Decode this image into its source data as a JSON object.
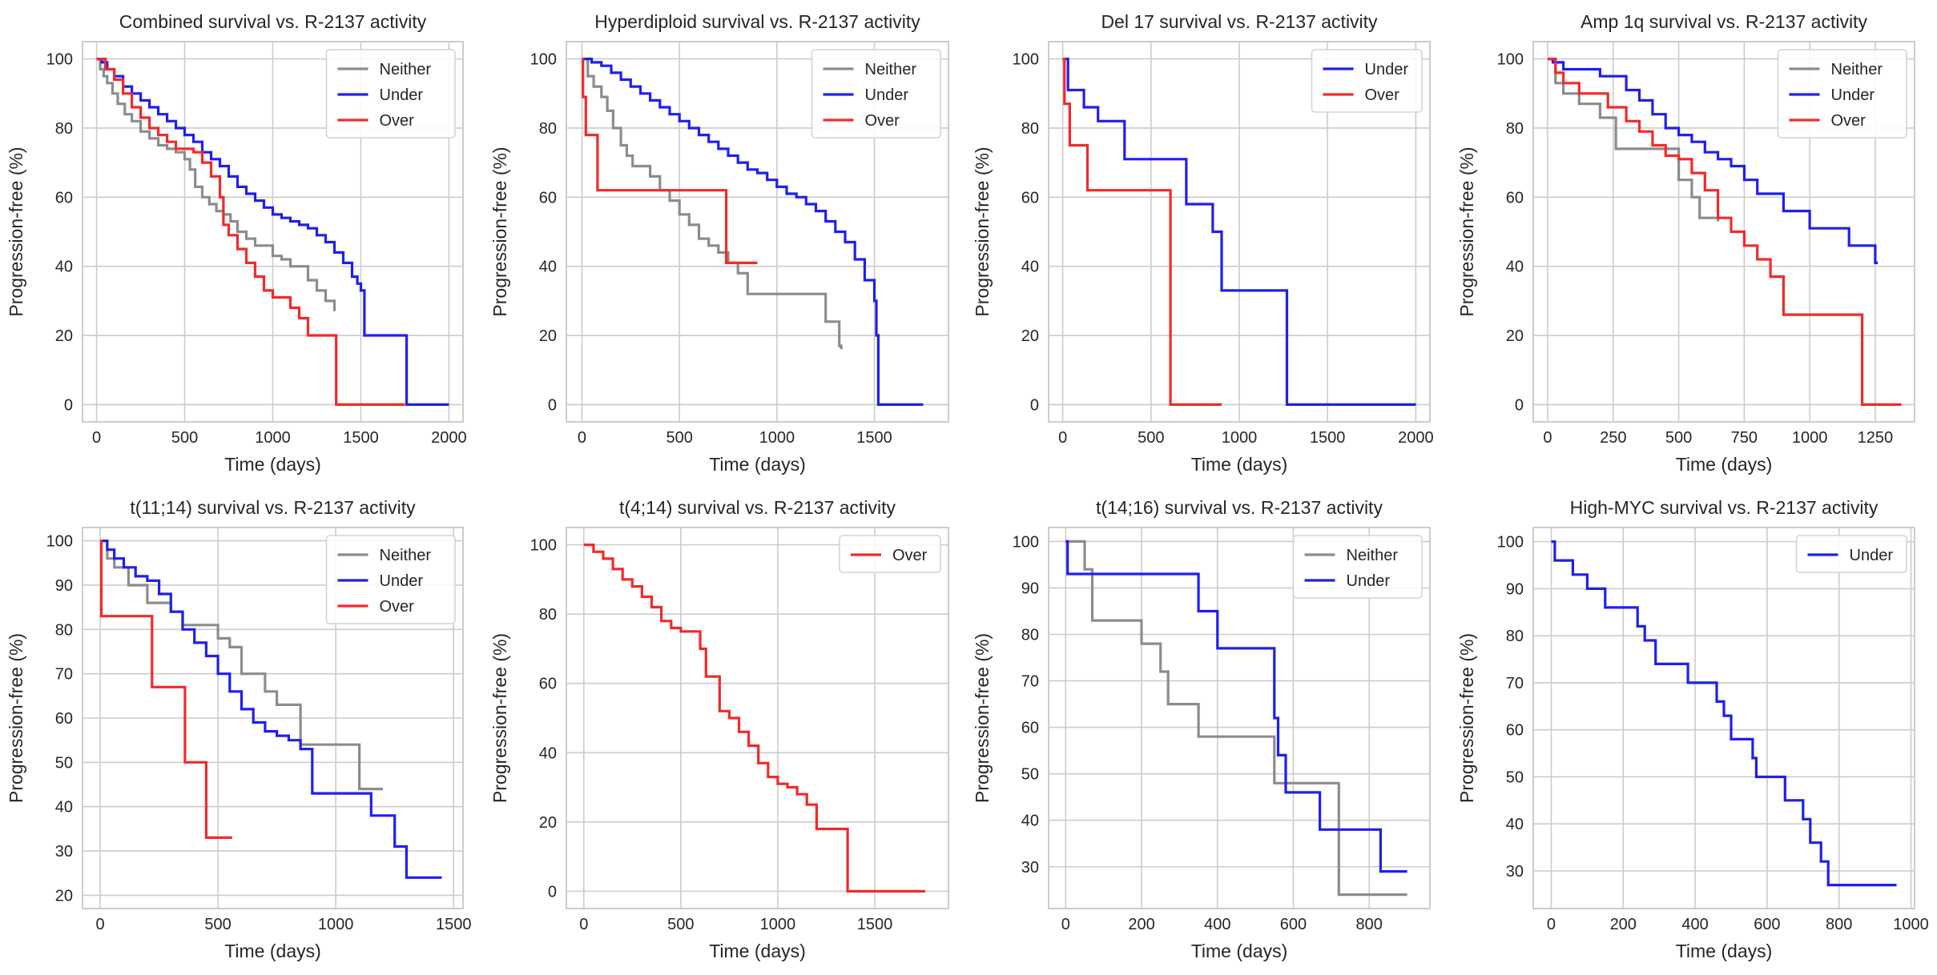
{
  "colors": {
    "Neither": "#8c8c8c",
    "Under": "#1f1fef",
    "Over": "#f22a2a"
  },
  "chart_data": [
    {
      "type": "line",
      "title": "Combined survival vs. R-2137 activity",
      "xlabel": "Time (days)",
      "ylabel": "Progression-free (%)",
      "xlim": [
        -80,
        2080
      ],
      "ylim": [
        -5,
        105
      ],
      "xticks": [
        0,
        500,
        1000,
        1500,
        2000
      ],
      "yticks": [
        0,
        20,
        40,
        60,
        80,
        100
      ],
      "legend": "top-right",
      "series": [
        {
          "name": "Neither",
          "x": [
            0,
            20,
            40,
            60,
            90,
            120,
            160,
            200,
            250,
            300,
            350,
            400,
            450,
            500,
            530,
            560,
            600,
            640,
            680,
            720,
            760,
            800,
            850,
            900,
            1000,
            1050,
            1100,
            1200,
            1250,
            1300,
            1350
          ],
          "y": [
            100,
            97,
            95,
            93,
            90,
            87,
            84,
            82,
            79,
            77,
            75,
            74,
            73,
            71,
            68,
            63,
            60,
            58,
            56,
            55,
            53,
            50,
            48,
            46,
            43,
            42,
            40,
            36,
            33,
            30,
            27
          ]
        },
        {
          "name": "Under",
          "x": [
            0,
            30,
            60,
            100,
            150,
            200,
            250,
            300,
            350,
            400,
            450,
            500,
            550,
            600,
            650,
            700,
            750,
            800,
            850,
            900,
            950,
            1000,
            1050,
            1100,
            1150,
            1200,
            1250,
            1300,
            1350,
            1400,
            1450,
            1480,
            1500,
            1520,
            1750,
            1760,
            2000
          ],
          "y": [
            100,
            99,
            97,
            95,
            92,
            90,
            88,
            86,
            84,
            82,
            80,
            78,
            76,
            73,
            71,
            69,
            66,
            63,
            61,
            59,
            57,
            55,
            54,
            53,
            52,
            51,
            49,
            47,
            44,
            41,
            37,
            35,
            33,
            20,
            20,
            0,
            0
          ]
        },
        {
          "name": "Over",
          "x": [
            0,
            50,
            100,
            150,
            200,
            250,
            300,
            350,
            400,
            450,
            500,
            550,
            600,
            650,
            700,
            720,
            750,
            800,
            850,
            900,
            950,
            1000,
            1100,
            1150,
            1200,
            1350,
            1360,
            1750
          ],
          "y": [
            100,
            97,
            94,
            90,
            86,
            83,
            80,
            78,
            76,
            74,
            74,
            73,
            70,
            66,
            60,
            52,
            49,
            45,
            41,
            37,
            33,
            31,
            28,
            25,
            20,
            20,
            0,
            0
          ]
        }
      ]
    },
    {
      "type": "line",
      "title": "Hyperdiploid survival vs. R-2137 activity",
      "xlabel": "Time (days)",
      "ylabel": "Progression-free (%)",
      "xlim": [
        -80,
        1880
      ],
      "ylim": [
        -5,
        105
      ],
      "xticks": [
        0,
        500,
        1000,
        1500
      ],
      "yticks": [
        0,
        20,
        40,
        60,
        80,
        100
      ],
      "legend": "top-right",
      "series": [
        {
          "name": "Neither",
          "x": [
            0,
            30,
            60,
            100,
            130,
            160,
            200,
            230,
            260,
            300,
            350,
            400,
            450,
            500,
            550,
            600,
            650,
            700,
            750,
            800,
            850,
            1250,
            1320,
            1330
          ],
          "y": [
            100,
            95,
            92,
            89,
            85,
            80,
            75,
            72,
            69,
            69,
            66,
            62,
            59,
            55,
            52,
            48,
            46,
            44,
            41,
            38,
            32,
            24,
            17,
            16
          ]
        },
        {
          "name": "Under",
          "x": [
            0,
            50,
            100,
            150,
            200,
            250,
            300,
            350,
            400,
            450,
            500,
            550,
            600,
            650,
            700,
            750,
            800,
            850,
            900,
            950,
            1000,
            1050,
            1100,
            1150,
            1200,
            1250,
            1300,
            1350,
            1400,
            1450,
            1500,
            1510,
            1520,
            1750
          ],
          "y": [
            100,
            99,
            98,
            96,
            94,
            92,
            90,
            88,
            86,
            84,
            82,
            80,
            78,
            76,
            74,
            72,
            70,
            68,
            67,
            65,
            63,
            61,
            60,
            58,
            56,
            53,
            50,
            47,
            42,
            36,
            30,
            20,
            0,
            0
          ]
        },
        {
          "name": "Over",
          "x": [
            0,
            5,
            20,
            80,
            720,
            740,
            900
          ],
          "y": [
            100,
            89,
            78,
            62,
            62,
            41,
            41
          ]
        }
      ]
    },
    {
      "type": "line",
      "title": "Del 17 survival vs. R-2137 activity",
      "xlabel": "Time (days)",
      "ylabel": "Progression-free (%)",
      "xlim": [
        -80,
        2080
      ],
      "ylim": [
        -5,
        105
      ],
      "xticks": [
        0,
        500,
        1000,
        1500,
        2000
      ],
      "yticks": [
        0,
        20,
        40,
        60,
        80,
        100
      ],
      "legend": "top-right",
      "series": [
        {
          "name": "Under",
          "x": [
            0,
            30,
            120,
            200,
            350,
            680,
            700,
            850,
            900,
            1250,
            1270,
            2000
          ],
          "y": [
            100,
            91,
            86,
            82,
            71,
            71,
            58,
            50,
            33,
            33,
            0,
            0
          ]
        },
        {
          "name": "Over",
          "x": [
            0,
            10,
            40,
            140,
            590,
            610,
            900
          ],
          "y": [
            100,
            87,
            75,
            62,
            62,
            0,
            0
          ]
        }
      ]
    },
    {
      "type": "line",
      "title": "Amp 1q survival vs. R-2137 activity",
      "xlabel": "Time (days)",
      "ylabel": "Progression-free (%)",
      "xlim": [
        -55,
        1400
      ],
      "ylim": [
        -5,
        105
      ],
      "xticks": [
        0,
        250,
        500,
        750,
        1000,
        1250
      ],
      "yticks": [
        0,
        20,
        40,
        60,
        80,
        100
      ],
      "legend": "top-right",
      "series": [
        {
          "name": "Neither",
          "x": [
            0,
            30,
            60,
            120,
            200,
            260,
            400,
            500,
            550,
            580,
            620,
            650
          ],
          "y": [
            100,
            93,
            90,
            87,
            83,
            74,
            74,
            65,
            60,
            54,
            54,
            53
          ]
        },
        {
          "name": "Under",
          "x": [
            0,
            20,
            60,
            200,
            300,
            350,
            400,
            450,
            500,
            550,
            600,
            650,
            700,
            750,
            800,
            900,
            1000,
            1150,
            1250,
            1260
          ],
          "y": [
            100,
            99,
            97,
            95,
            91,
            88,
            84,
            80,
            78,
            76,
            73,
            71,
            69,
            65,
            61,
            56,
            51,
            46,
            41,
            41
          ]
        },
        {
          "name": "Over",
          "x": [
            0,
            30,
            60,
            120,
            230,
            300,
            350,
            400,
            450,
            500,
            550,
            600,
            650,
            700,
            750,
            800,
            850,
            900,
            1180,
            1200,
            1350
          ],
          "y": [
            100,
            96,
            93,
            90,
            86,
            82,
            79,
            75,
            72,
            71,
            67,
            62,
            54,
            50,
            46,
            42,
            37,
            26,
            26,
            0,
            0
          ]
        }
      ]
    },
    {
      "type": "line",
      "title": "t(11;14) survival vs. R-2137 activity",
      "xlabel": "Time (days)",
      "ylabel": "Progression-free (%)",
      "xlim": [
        -75,
        1540
      ],
      "ylim": [
        17,
        103
      ],
      "xticks": [
        0,
        500,
        1000,
        1500
      ],
      "yticks": [
        20,
        30,
        40,
        50,
        60,
        70,
        80,
        90,
        100
      ],
      "legend": "top-right",
      "series": [
        {
          "name": "Neither",
          "x": [
            0,
            30,
            60,
            120,
            200,
            300,
            350,
            400,
            500,
            550,
            600,
            700,
            750,
            850,
            1050,
            1100,
            1200
          ],
          "y": [
            100,
            96,
            94,
            90,
            86,
            84,
            81,
            81,
            78,
            76,
            70,
            66,
            63,
            54,
            54,
            44,
            44
          ]
        },
        {
          "name": "Under",
          "x": [
            0,
            30,
            60,
            100,
            150,
            200,
            250,
            300,
            350,
            400,
            450,
            500,
            550,
            600,
            650,
            700,
            750,
            800,
            850,
            900,
            1100,
            1150,
            1250,
            1300,
            1450
          ],
          "y": [
            100,
            98,
            96,
            94,
            92,
            91,
            88,
            84,
            80,
            77,
            74,
            70,
            66,
            62,
            59,
            57,
            56,
            55,
            53,
            43,
            43,
            38,
            31,
            24,
            24
          ]
        },
        {
          "name": "Over",
          "x": [
            0,
            5,
            220,
            360,
            450,
            560
          ],
          "y": [
            100,
            83,
            67,
            50,
            33,
            33
          ]
        }
      ]
    },
    {
      "type": "line",
      "title": "t(4;14) survival vs. R-2137 activity",
      "xlabel": "Time (days)",
      "ylabel": "Progression-free (%)",
      "xlim": [
        -90,
        1880
      ],
      "ylim": [
        -5,
        105
      ],
      "xticks": [
        0,
        500,
        1000,
        1500
      ],
      "yticks": [
        0,
        20,
        40,
        60,
        80,
        100
      ],
      "legend": "top-right",
      "series": [
        {
          "name": "Over",
          "x": [
            0,
            50,
            100,
            150,
            200,
            250,
            300,
            350,
            400,
            450,
            500,
            550,
            600,
            630,
            650,
            700,
            750,
            800,
            850,
            900,
            950,
            1000,
            1050,
            1100,
            1150,
            1200,
            1350,
            1360,
            1760
          ],
          "y": [
            100,
            98,
            96,
            93,
            90,
            88,
            85,
            82,
            78,
            76,
            75,
            75,
            70,
            62,
            62,
            52,
            50,
            46,
            42,
            37,
            33,
            31,
            30,
            28,
            25,
            18,
            18,
            0,
            0
          ]
        }
      ]
    },
    {
      "type": "line",
      "title": "t(14;16) survival vs. R-2137 activity",
      "xlabel": "Time (days)",
      "ylabel": "Progression-free (%)",
      "xlim": [
        -45,
        960
      ],
      "ylim": [
        21,
        103
      ],
      "xticks": [
        0,
        200,
        400,
        600,
        800
      ],
      "yticks": [
        30,
        40,
        50,
        60,
        70,
        80,
        90,
        100
      ],
      "legend": "top-right",
      "series": [
        {
          "name": "Neither",
          "x": [
            0,
            50,
            70,
            200,
            250,
            270,
            350,
            550,
            720,
            900
          ],
          "y": [
            100,
            94,
            83,
            78,
            72,
            65,
            58,
            48,
            24,
            24
          ]
        },
        {
          "name": "Under",
          "x": [
            0,
            5,
            350,
            400,
            550,
            560,
            580,
            600,
            670,
            830,
            900
          ],
          "y": [
            100,
            93,
            85,
            77,
            62,
            54,
            46,
            46,
            38,
            29,
            29
          ]
        }
      ]
    },
    {
      "type": "line",
      "title": "High-MYC survival vs. R-2137 activity",
      "xlabel": "Time (days)",
      "ylabel": "Progression-free (%)",
      "xlim": [
        -50,
        1010
      ],
      "ylim": [
        22,
        103
      ],
      "xticks": [
        0,
        200,
        400,
        600,
        800,
        1000
      ],
      "yticks": [
        30,
        40,
        50,
        60,
        70,
        80,
        90,
        100
      ],
      "legend": "top-right",
      "series": [
        {
          "name": "Under",
          "x": [
            0,
            10,
            60,
            100,
            150,
            240,
            260,
            290,
            380,
            460,
            480,
            500,
            560,
            570,
            650,
            700,
            720,
            750,
            770,
            800,
            960
          ],
          "y": [
            100,
            96,
            93,
            90,
            86,
            82,
            79,
            74,
            70,
            66,
            63,
            58,
            54,
            50,
            45,
            41,
            36,
            32,
            27,
            27,
            27
          ]
        }
      ]
    }
  ]
}
